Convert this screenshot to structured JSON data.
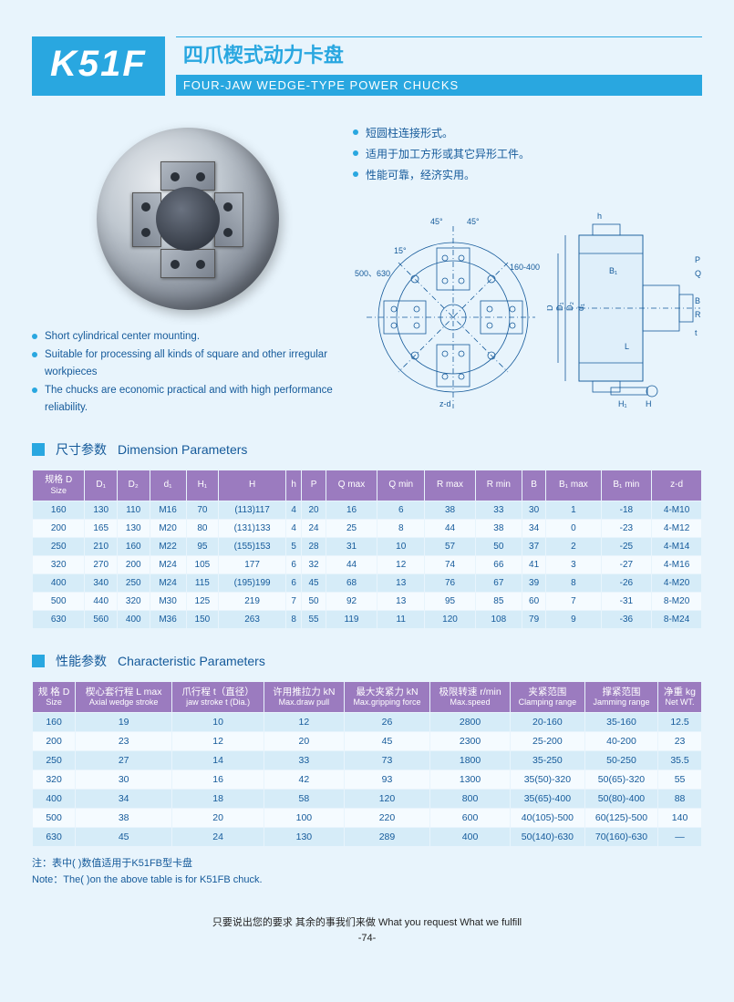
{
  "header": {
    "code": "K51F",
    "title_cn": "四爪楔式动力卡盘",
    "title_en": "FOUR-JAW WEDGE-TYPE POWER CHUCKS"
  },
  "bullets_cn": [
    "短圆柱连接形式。",
    "适用于加工方形或其它异形工件。",
    "性能可靠，经济实用。"
  ],
  "bullets_en": [
    "Short cylindrical center mounting.",
    "Suitable for processing all kinds of square and other irregular workpieces",
    "The chucks are economic practical and with high performance reliability."
  ],
  "diagram_labels": {
    "angle1": "45°",
    "angle2": "45°",
    "left": "500、630",
    "leftInner": "15°",
    "right": "160-400",
    "zd": "z-d",
    "D": "D",
    "h": "h",
    "D1": "D₁",
    "D2": "D₂",
    "d1": "d₁",
    "B1": "B₁",
    "L": "L",
    "B": "B",
    "R": "R",
    "t": "t",
    "P": "P",
    "Q": "Q",
    "H1": "H₁",
    "H": "H"
  },
  "section1": {
    "cn": "尺寸参数",
    "en": "Dimension Parameters"
  },
  "table1": {
    "headers": [
      "规格 D\nSize",
      "D₁",
      "D₂",
      "d₁",
      "H₁",
      "H",
      "h",
      "P",
      "Q max",
      "Q min",
      "R max",
      "R min",
      "B",
      "B₁ max",
      "B₁ min",
      "z-d"
    ],
    "rows": [
      [
        "160",
        "130",
        "110",
        "M16",
        "70",
        "(113)117",
        "4",
        "20",
        "16",
        "6",
        "38",
        "33",
        "30",
        "1",
        "-18",
        "4-M10"
      ],
      [
        "200",
        "165",
        "130",
        "M20",
        "80",
        "(131)133",
        "4",
        "24",
        "25",
        "8",
        "44",
        "38",
        "34",
        "0",
        "-23",
        "4-M12"
      ],
      [
        "250",
        "210",
        "160",
        "M22",
        "95",
        "(155)153",
        "5",
        "28",
        "31",
        "10",
        "57",
        "50",
        "37",
        "2",
        "-25",
        "4-M14"
      ],
      [
        "320",
        "270",
        "200",
        "M24",
        "105",
        "177",
        "6",
        "32",
        "44",
        "12",
        "74",
        "66",
        "41",
        "3",
        "-27",
        "4-M16"
      ],
      [
        "400",
        "340",
        "250",
        "M24",
        "115",
        "(195)199",
        "6",
        "45",
        "68",
        "13",
        "76",
        "67",
        "39",
        "8",
        "-26",
        "4-M20"
      ],
      [
        "500",
        "440",
        "320",
        "M30",
        "125",
        "219",
        "7",
        "50",
        "92",
        "13",
        "95",
        "85",
        "60",
        "7",
        "-31",
        "8-M20"
      ],
      [
        "630",
        "560",
        "400",
        "M36",
        "150",
        "263",
        "8",
        "55",
        "119",
        "11",
        "120",
        "108",
        "79",
        "9",
        "-36",
        "8-M24"
      ]
    ]
  },
  "section2": {
    "cn": "性能参数",
    "en": "Characteristic Parameters"
  },
  "table2": {
    "headers": [
      {
        "cn": "规 格 D",
        "en": "Size"
      },
      {
        "cn": "楔心套行程 L max",
        "en": "Axial wedge stroke"
      },
      {
        "cn": "爪行程 t（直径）",
        "en": "jaw stroke t (Dia.)"
      },
      {
        "cn": "许用推拉力 kN",
        "en": "Max.draw pull"
      },
      {
        "cn": "最大夹紧力 kN",
        "en": "Max.gripping force"
      },
      {
        "cn": "极限转速 r/min",
        "en": "Max.speed"
      },
      {
        "cn": "夹紧范围",
        "en": "Clamping range"
      },
      {
        "cn": "撑紧范围",
        "en": "Jamming range"
      },
      {
        "cn": "净重 kg",
        "en": "Net WT."
      }
    ],
    "rows": [
      [
        "160",
        "19",
        "10",
        "12",
        "26",
        "2800",
        "20-160",
        "35-160",
        "12.5"
      ],
      [
        "200",
        "23",
        "12",
        "20",
        "45",
        "2300",
        "25-200",
        "40-200",
        "23"
      ],
      [
        "250",
        "27",
        "14",
        "33",
        "73",
        "1800",
        "35-250",
        "50-250",
        "35.5"
      ],
      [
        "320",
        "30",
        "16",
        "42",
        "93",
        "1300",
        "35(50)-320",
        "50(65)-320",
        "55"
      ],
      [
        "400",
        "34",
        "18",
        "58",
        "120",
        "800",
        "35(65)-400",
        "50(80)-400",
        "88"
      ],
      [
        "500",
        "38",
        "20",
        "100",
        "220",
        "600",
        "40(105)-500",
        "60(125)-500",
        "140"
      ],
      [
        "630",
        "45",
        "24",
        "130",
        "289",
        "400",
        "50(140)-630",
        "70(160)-630",
        "—"
      ]
    ]
  },
  "note": {
    "cn": "注：表中(  )数值适用于K51FB型卡盘",
    "en": "Note：The(  )on the above table is for K51FB chuck."
  },
  "footer": {
    "tagline": "只要说出您的要求  其余的事我们来做   What you request  What we fulfill",
    "page": "-74-"
  },
  "colors": {
    "brand": "#29a7e0",
    "th_bg": "#9b7bbf",
    "row_odd": "#d6ecf8",
    "row_even": "#f5fbff",
    "text_blue": "#155a9a",
    "bg": "#e8f4fc"
  }
}
